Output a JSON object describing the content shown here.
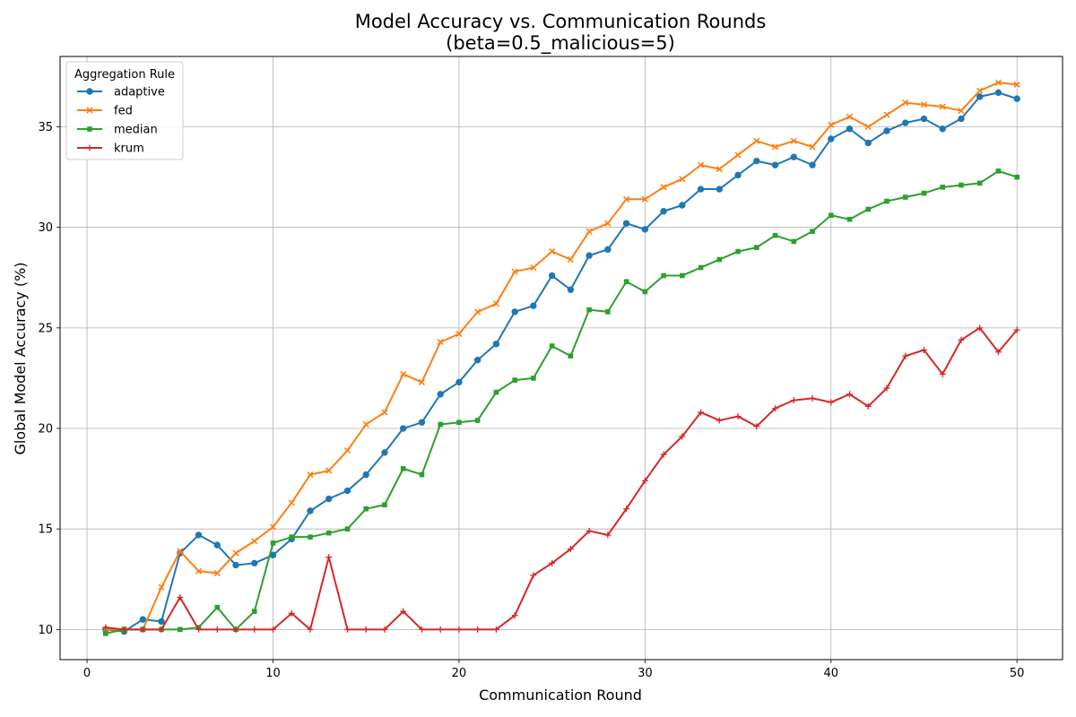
{
  "chart_data": {
    "type": "line",
    "title_line1": "Model Accuracy vs. Communication Rounds",
    "title_line2": "(beta=0.5_malicious=5)",
    "xlabel": "Communication Round",
    "ylabel": "Global Model Accuracy (%)",
    "xlim": [
      -1.45,
      52.45
    ],
    "ylim": [
      8.5,
      38.5
    ],
    "xticks": [
      0,
      10,
      20,
      30,
      40,
      50
    ],
    "yticks": [
      10,
      15,
      20,
      25,
      30,
      35
    ],
    "grid": true,
    "legend": {
      "title": "Aggregation Rule",
      "placement": "top-left"
    },
    "x": [
      1,
      2,
      3,
      4,
      5,
      6,
      7,
      8,
      9,
      10,
      11,
      12,
      13,
      14,
      15,
      16,
      17,
      18,
      19,
      20,
      21,
      22,
      23,
      24,
      25,
      26,
      27,
      28,
      29,
      30,
      31,
      32,
      33,
      34,
      35,
      36,
      37,
      38,
      39,
      40,
      41,
      42,
      43,
      44,
      45,
      46,
      47,
      48,
      49,
      50
    ],
    "series": [
      {
        "name": "adaptive",
        "color": "#1f77b4",
        "marker": "circle",
        "values": [
          10.0,
          9.9,
          10.5,
          10.4,
          13.8,
          14.7,
          14.2,
          13.2,
          13.3,
          13.7,
          14.5,
          15.9,
          16.5,
          16.9,
          17.7,
          18.8,
          20.0,
          20.3,
          21.7,
          22.3,
          23.4,
          24.2,
          25.8,
          26.1,
          27.6,
          26.9,
          28.6,
          28.9,
          30.2,
          29.9,
          30.8,
          31.1,
          31.9,
          31.9,
          32.6,
          33.3,
          33.1,
          33.5,
          33.1,
          34.4,
          34.9,
          34.2,
          34.8,
          35.2,
          35.4,
          34.9,
          35.4,
          36.5,
          36.7,
          36.4
        ]
      },
      {
        "name": "fed",
        "color": "#ff7f0e",
        "marker": "x",
        "values": [
          10.0,
          10.0,
          10.0,
          12.1,
          13.9,
          12.9,
          12.8,
          13.8,
          14.4,
          15.1,
          16.3,
          17.7,
          17.9,
          18.9,
          20.2,
          20.8,
          22.7,
          22.3,
          24.3,
          24.7,
          25.8,
          26.2,
          27.8,
          28.0,
          28.8,
          28.4,
          29.8,
          30.2,
          31.4,
          31.4,
          32.0,
          32.4,
          33.1,
          32.9,
          33.6,
          34.3,
          34.0,
          34.3,
          34.0,
          35.1,
          35.5,
          35.0,
          35.6,
          36.2,
          36.1,
          36.0,
          35.8,
          36.8,
          37.2,
          37.1
        ]
      },
      {
        "name": "median",
        "color": "#2ca02c",
        "marker": "square",
        "values": [
          9.8,
          10.0,
          10.0,
          10.0,
          10.0,
          10.1,
          11.1,
          10.0,
          10.9,
          14.3,
          14.6,
          14.6,
          14.8,
          15.0,
          16.0,
          16.2,
          18.0,
          17.7,
          20.2,
          20.3,
          20.4,
          21.8,
          22.4,
          22.5,
          24.1,
          23.6,
          25.9,
          25.8,
          27.3,
          26.8,
          27.6,
          27.6,
          28.0,
          28.4,
          28.8,
          29.0,
          29.6,
          29.3,
          29.8,
          30.6,
          30.4,
          30.9,
          31.3,
          31.5,
          31.7,
          32.0,
          32.1,
          32.2,
          32.8,
          32.5
        ]
      },
      {
        "name": "krum",
        "color": "#d62728",
        "marker": "plus",
        "values": [
          10.1,
          10.0,
          10.0,
          10.0,
          11.6,
          10.0,
          10.0,
          10.0,
          10.0,
          10.0,
          10.8,
          10.0,
          13.6,
          10.0,
          10.0,
          10.0,
          10.9,
          10.0,
          10.0,
          10.0,
          10.0,
          10.0,
          10.7,
          12.7,
          13.3,
          14.0,
          14.9,
          14.7,
          16.0,
          17.4,
          18.7,
          19.6,
          20.8,
          20.4,
          20.6,
          20.1,
          21.0,
          21.4,
          21.5,
          21.3,
          21.7,
          21.1,
          22.0,
          23.6,
          23.9,
          22.7,
          24.4,
          25.0,
          23.8,
          24.9
        ]
      }
    ]
  }
}
